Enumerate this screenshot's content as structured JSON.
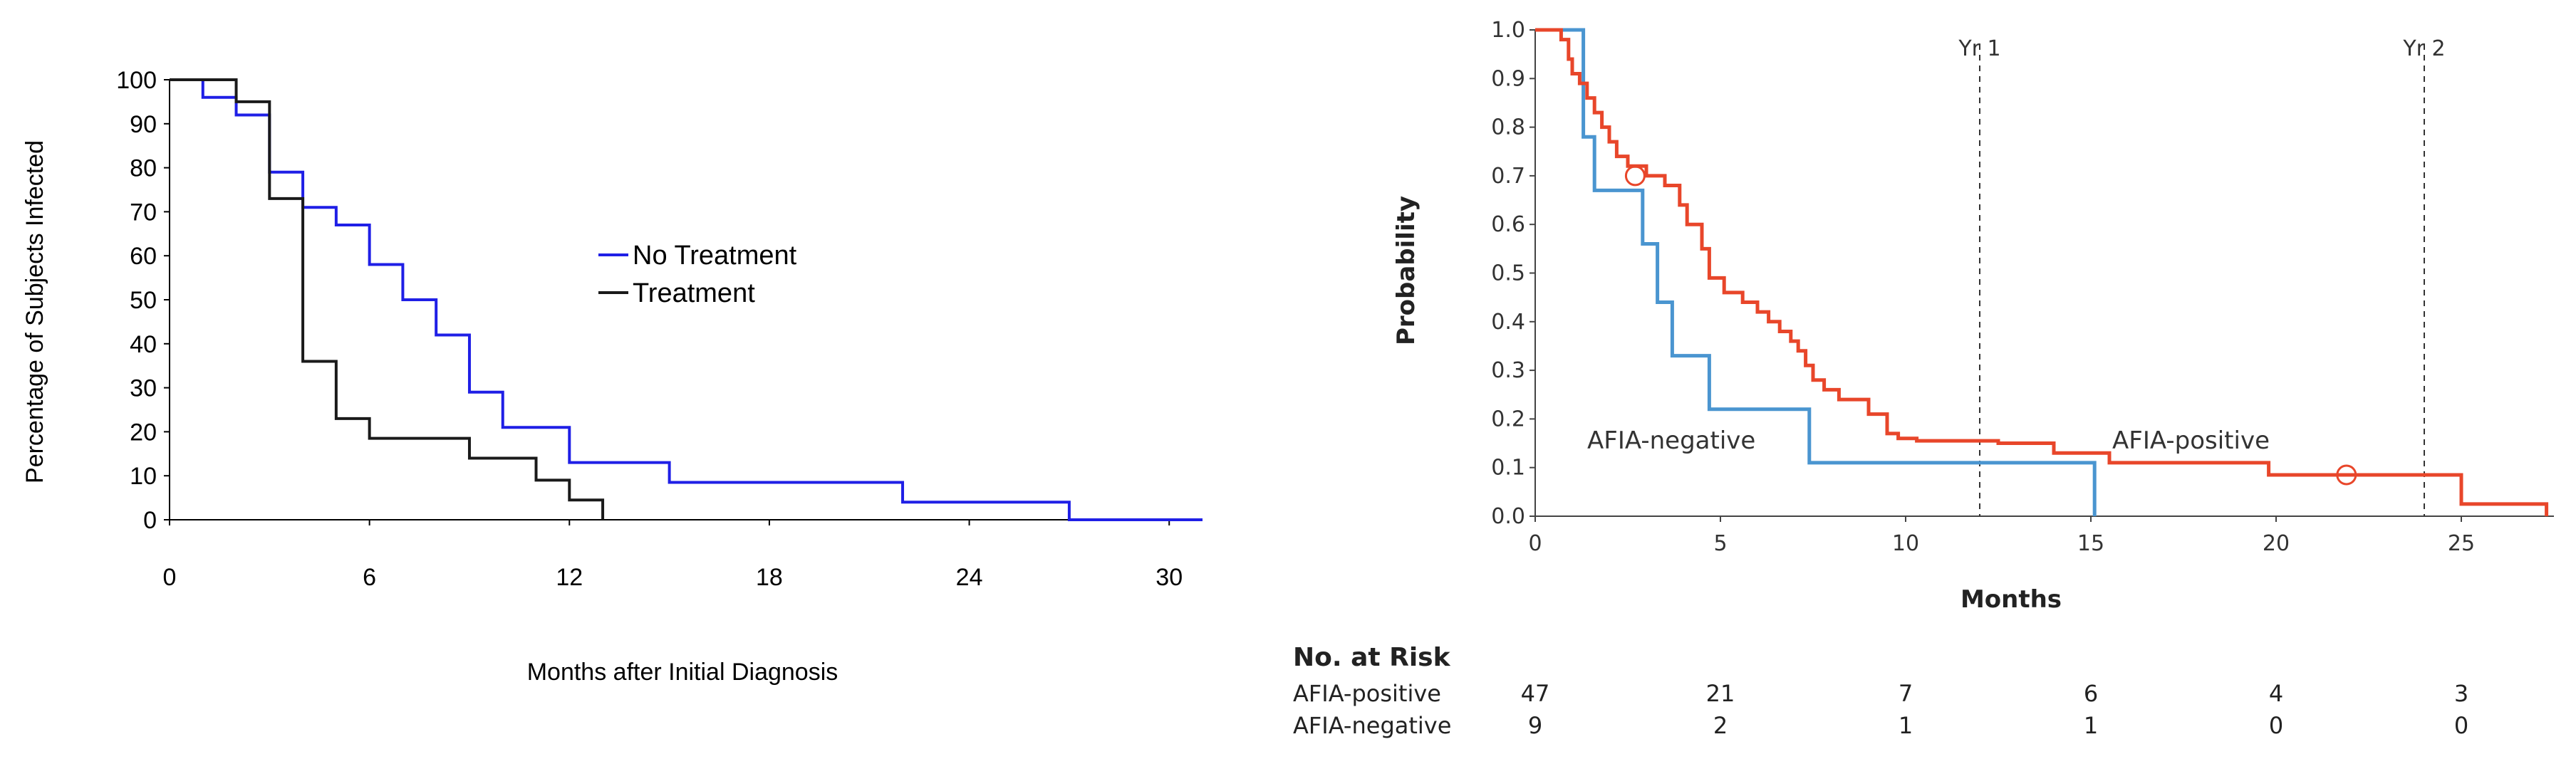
{
  "chart_data": [
    {
      "type": "line",
      "step": true,
      "title": "",
      "xlabel": "Months after Initial Diagnosis",
      "ylabel": "Percentage of Subjects Infected",
      "xlim": [
        0,
        31
      ],
      "ylim": [
        0,
        100
      ],
      "xticks": [
        0,
        6,
        12,
        18,
        24,
        30
      ],
      "yticks": [
        0,
        10,
        20,
        30,
        40,
        50,
        60,
        70,
        80,
        90,
        100
      ],
      "legend_position": "center-right",
      "series": [
        {
          "name": "No Treatment",
          "color": "#1f1fe6",
          "x": [
            0,
            1,
            2,
            3,
            4,
            5,
            6,
            7,
            8,
            9,
            10,
            12,
            15,
            22,
            27,
            31
          ],
          "y": [
            100,
            96,
            92,
            79,
            71,
            67,
            58,
            50,
            42,
            29,
            21,
            13,
            8.5,
            4,
            0,
            0
          ]
        },
        {
          "name": "Treatment",
          "color": "#1a1a1a",
          "x": [
            0,
            2,
            3,
            4,
            5,
            6,
            9,
            11,
            12,
            13
          ],
          "y": [
            100,
            95,
            73,
            36,
            23,
            18.5,
            14,
            9,
            4.5,
            0
          ]
        }
      ]
    },
    {
      "type": "line",
      "step": true,
      "title": "",
      "xlabel": "Months",
      "ylabel": "Probability",
      "xlim": [
        0,
        27.5
      ],
      "ylim": [
        0,
        1.0
      ],
      "xticks": [
        "0",
        "5",
        "10",
        "15",
        "20",
        "25"
      ],
      "yticks": [
        "0.0",
        "0.1",
        "0.2",
        "0.3",
        "0.4",
        "0.5",
        "0.6",
        "0.7",
        "0.8",
        "0.9",
        "1.0"
      ],
      "reference_lines": [
        {
          "label": "Yr 1",
          "x": 12
        },
        {
          "label": "Yr 2",
          "x": 24
        }
      ],
      "series": [
        {
          "name": "AFIA-positive",
          "color": "#e8462a",
          "x": [
            0,
            0.7,
            0.9,
            1.0,
            1.2,
            1.4,
            1.6,
            1.8,
            2.0,
            2.2,
            2.5,
            3.0,
            3.5,
            3.9,
            4.1,
            4.5,
            4.7,
            5.1,
            5.6,
            6.0,
            6.3,
            6.6,
            6.9,
            7.1,
            7.3,
            7.5,
            7.8,
            8.2,
            9.0,
            9.5,
            9.8,
            10.3,
            12.5,
            14.0,
            15.5,
            19.8,
            25.0,
            27.3
          ],
          "y": [
            1.0,
            0.98,
            0.94,
            0.91,
            0.89,
            0.86,
            0.83,
            0.8,
            0.77,
            0.74,
            0.72,
            0.7,
            0.68,
            0.64,
            0.6,
            0.55,
            0.49,
            0.46,
            0.44,
            0.42,
            0.4,
            0.38,
            0.36,
            0.34,
            0.31,
            0.28,
            0.26,
            0.24,
            0.21,
            0.17,
            0.16,
            0.155,
            0.15,
            0.13,
            0.11,
            0.085,
            0.025,
            0.0
          ]
        },
        {
          "name": "AFIA-negative",
          "color": "#4a95d0",
          "x": [
            0,
            1.3,
            1.6,
            2.9,
            3.3,
            3.7,
            4.7,
            7.4,
            15.1
          ],
          "y": [
            1.0,
            0.78,
            0.67,
            0.56,
            0.44,
            0.33,
            0.22,
            0.11,
            0.0
          ]
        }
      ],
      "censor_marks": [
        {
          "series": "AFIA-positive",
          "x": 2.7,
          "y": 0.7
        },
        {
          "series": "AFIA-positive",
          "x": 21.9,
          "y": 0.085
        }
      ],
      "annotations": [
        "AFIA-negative",
        "AFIA-positive"
      ],
      "risk_table": {
        "title": "No. at Risk",
        "rows": [
          {
            "label": "AFIA-positive",
            "values": [
              "47",
              "21",
              "7",
              "6",
              "4",
              "3"
            ]
          },
          {
            "label": "AFIA-negative",
            "values": [
              "9",
              "2",
              "1",
              "1",
              "0",
              "0"
            ]
          }
        ]
      }
    }
  ]
}
